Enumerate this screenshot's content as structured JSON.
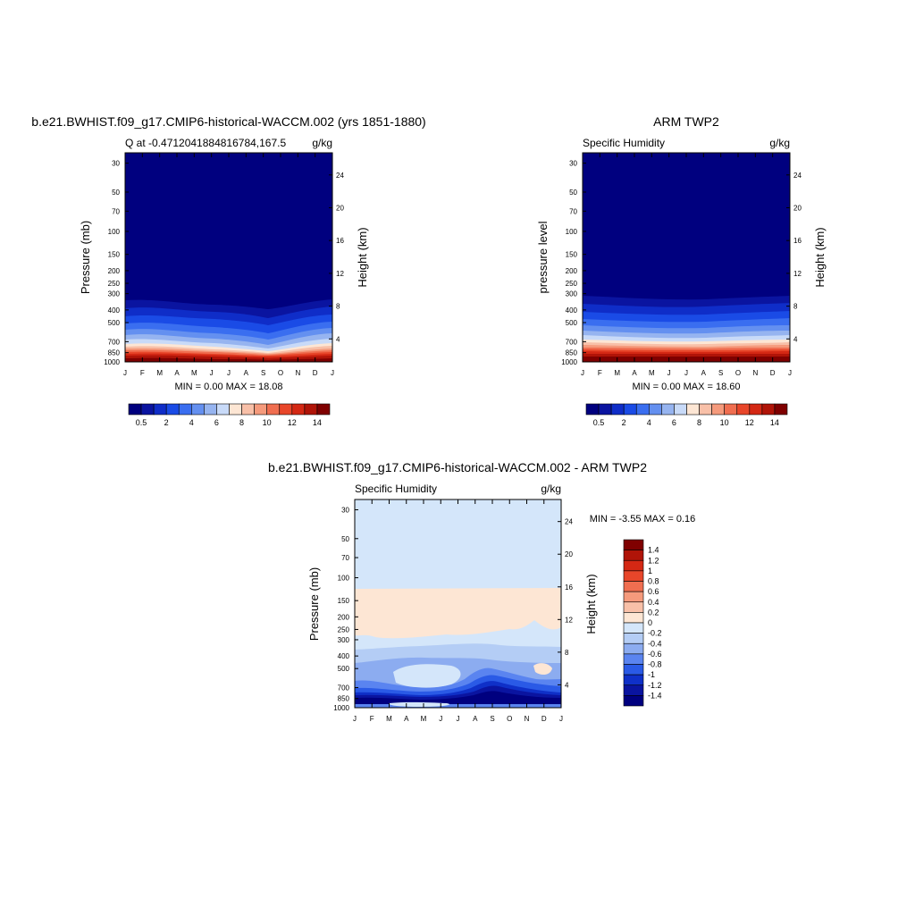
{
  "chart_data": [
    {
      "type": "heatmap",
      "title": "b.e21.BWHIST.f09_g17.CMIP6-historical-WACCM.002 (yrs 1851-1880)",
      "subtitle_left": "Q at -0.4712041884816784,167.5",
      "subtitle_right": "g/kg",
      "ylabel": "Pressure (mb)",
      "ylabel_right": "Height (km)",
      "x_ticks": [
        "J",
        "F",
        "M",
        "A",
        "M",
        "J",
        "J",
        "A",
        "S",
        "O",
        "N",
        "D",
        "J"
      ],
      "p_ticks": [
        30,
        50,
        70,
        100,
        150,
        200,
        250,
        300,
        400,
        500,
        700,
        850,
        1000
      ],
      "height_ticks": [
        24,
        20,
        16,
        12,
        8,
        4
      ],
      "min_max_label": "MIN =   0.00 MAX =  18.08",
      "min": 0.0,
      "max": 18.08,
      "colorbar": {
        "labels": [
          "0.5",
          "2",
          "4",
          "6",
          "8",
          "10",
          "12",
          "14"
        ]
      }
    },
    {
      "type": "heatmap",
      "title": "ARM TWP2",
      "subtitle_left": "Specific Humidity",
      "subtitle_right": "g/kg",
      "ylabel": "pressure level",
      "ylabel_right": "Height (km)",
      "x_ticks": [
        "J",
        "F",
        "M",
        "A",
        "M",
        "J",
        "J",
        "A",
        "S",
        "O",
        "N",
        "D",
        "J"
      ],
      "p_ticks": [
        30,
        50,
        70,
        100,
        150,
        200,
        250,
        300,
        400,
        500,
        700,
        850,
        1000
      ],
      "height_ticks": [
        24,
        20,
        16,
        12,
        8,
        4
      ],
      "min_max_label": "MIN =   0.00 MAX =  18.60",
      "min": 0.0,
      "max": 18.6,
      "colorbar": {
        "labels": [
          "0.5",
          "2",
          "4",
          "6",
          "8",
          "10",
          "12",
          "14"
        ]
      }
    },
    {
      "type": "heatmap",
      "title": "b.e21.BWHIST.f09_g17.CMIP6-historical-WACCM.002 - ARM TWP2",
      "subtitle_left": "Specific Humidity",
      "subtitle_right": "g/kg",
      "ylabel": "Pressure (mb)",
      "ylabel_right": "Height (km)",
      "x_ticks": [
        "J",
        "F",
        "M",
        "A",
        "M",
        "J",
        "J",
        "A",
        "S",
        "O",
        "N",
        "D",
        "J"
      ],
      "p_ticks": [
        30,
        50,
        70,
        100,
        150,
        200,
        250,
        300,
        400,
        500,
        700,
        850,
        1000
      ],
      "height_ticks": [
        24,
        20,
        16,
        12,
        8,
        4
      ],
      "min_max_label": "MIN =  -3.55 MAX =   0.16",
      "min": -3.55,
      "max": 0.16,
      "colorbar": {
        "labels": [
          "1.4",
          "1.2",
          "1",
          "0.8",
          "0.6",
          "0.4",
          "0.2",
          "0",
          "-0.2",
          "-0.4",
          "-0.6",
          "-0.8",
          "-1",
          "-1.2",
          "-1.4"
        ]
      }
    }
  ],
  "colors": {
    "seq": [
      "#00007f",
      "#0a14a0",
      "#0f2dc8",
      "#1a4be6",
      "#3a6ef0",
      "#6490f0",
      "#96b4f0",
      "#c8daf8",
      "#fde6d4",
      "#f8c0a8",
      "#f59a7c",
      "#f06e50",
      "#e8462a",
      "#d42814",
      "#b01408",
      "#7f0000"
    ],
    "div": [
      "#7f0000",
      "#b01408",
      "#d42814",
      "#e8462a",
      "#f06e50",
      "#f59a7c",
      "#f8c0a8",
      "#fde6d4",
      "#d4e6fa",
      "#b4cdf5",
      "#8cacf0",
      "#5a84f0",
      "#2a5ae6",
      "#0f30c8",
      "#0a14a0",
      "#00007f"
    ]
  }
}
